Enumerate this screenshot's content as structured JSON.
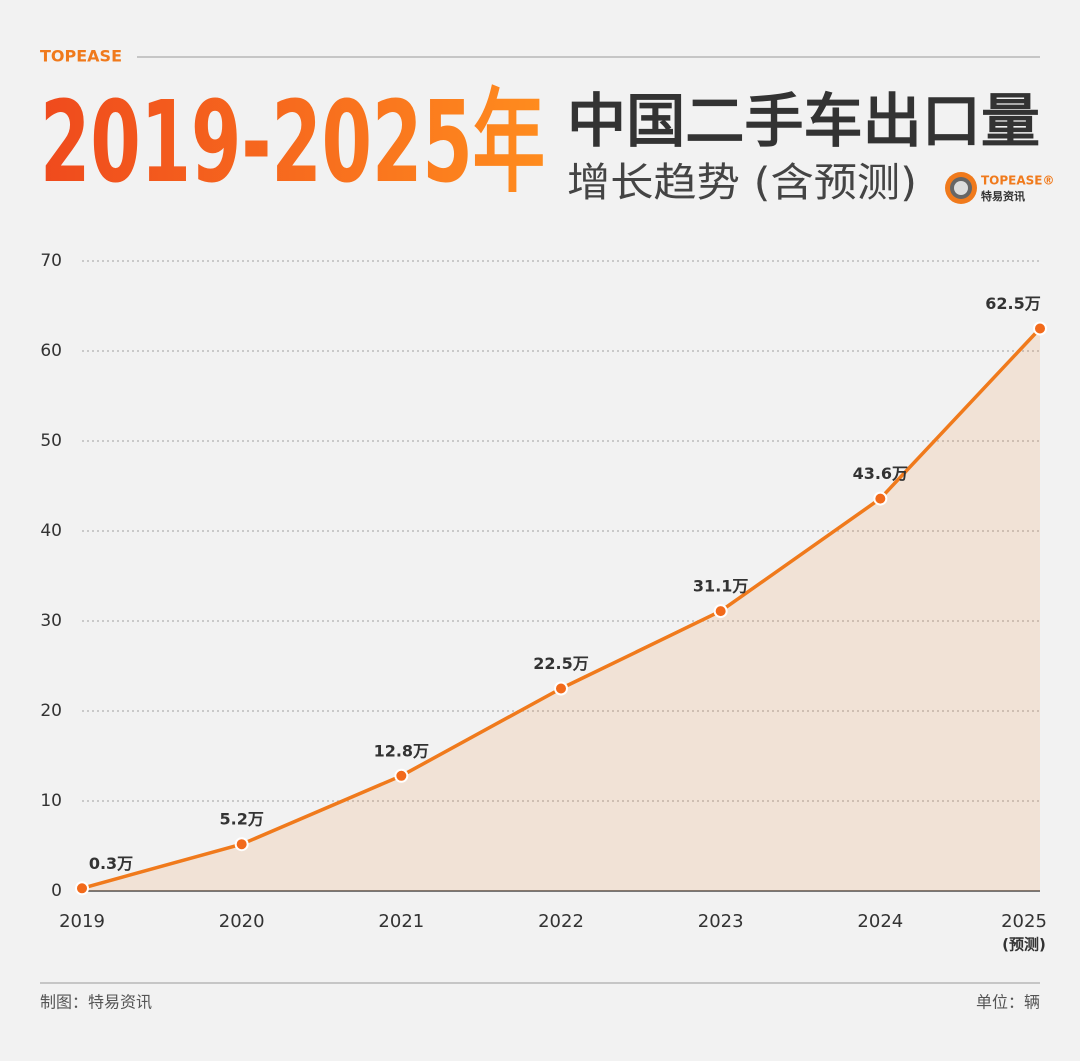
{
  "brand": "TOPEASE",
  "logo": {
    "name": "TOPEASE®",
    "subname": "特易资讯"
  },
  "footer": {
    "left": "制图：特易资讯",
    "right": "单位：辆"
  },
  "chart_data": {
    "type": "line",
    "title": "2019-2025年",
    "title_right": "中国二手车出口量",
    "subtitle": "增长趋势 (含预测)",
    "categories": [
      "2019",
      "2020",
      "2021",
      "2022",
      "2023",
      "2024",
      "2025"
    ],
    "category_note": "(预测)",
    "values": [
      0.3,
      5.2,
      12.8,
      22.5,
      31.1,
      43.6,
      62.5
    ],
    "value_labels": [
      "0.3万",
      "5.2万",
      "12.8万",
      "22.5万",
      "31.1万",
      "43.6万",
      "62.5万"
    ],
    "color": "#f07a1c",
    "ylim": [
      0,
      70
    ],
    "yticks": [
      0,
      10,
      20,
      30,
      40,
      50,
      60,
      70
    ],
    "grid": true
  }
}
